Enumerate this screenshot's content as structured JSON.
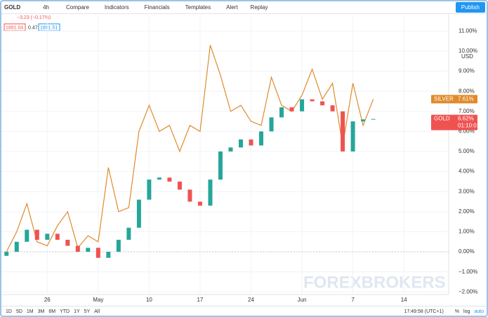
{
  "toolbar": {
    "symbol": "GOLD",
    "interval": "4h",
    "items": [
      "Compare",
      "Indicators",
      "Financials",
      "Templates",
      "Alert",
      "Replay"
    ],
    "publish": "Publish"
  },
  "legend": {
    "change": "−3.23 (−0.17%)",
    "bid": "1891.04",
    "spread": "0.47",
    "ask": "1891.51"
  },
  "chart_data": {
    "type": "line",
    "x": [
      0,
      1,
      2,
      3,
      4,
      5,
      6,
      7,
      8,
      9,
      10,
      11,
      12,
      13,
      14,
      15,
      16,
      17,
      18,
      19,
      20,
      21,
      22,
      23,
      24,
      25,
      26,
      27,
      28,
      29,
      30,
      31,
      32,
      33,
      34,
      35,
      36
    ],
    "series": [
      {
        "name": "SILVER",
        "color": "#e08a2b",
        "last_label": "7.61%",
        "values": [
          0.0,
          1.0,
          2.4,
          0.5,
          0.3,
          1.3,
          2.0,
          0.2,
          0.8,
          0.5,
          4.2,
          2.0,
          2.2,
          6.0,
          7.3,
          6.0,
          6.3,
          5.0,
          6.3,
          6.0,
          10.3,
          8.8,
          7.0,
          7.3,
          6.5,
          6.3,
          8.7,
          7.3,
          7.0,
          7.8,
          9.1,
          7.6,
          8.4,
          5.3,
          8.4,
          6.3,
          7.61
        ]
      },
      {
        "name": "GOLD",
        "color": "#26a69a",
        "down_color": "#ef5350",
        "last_label": "6.62%",
        "countdown": "01:10:01",
        "open": [
          -0.2,
          0.0,
          0.5,
          1.1,
          0.6,
          0.9,
          0.6,
          0.3,
          0.0,
          0.2,
          -0.3,
          0.0,
          0.6,
          1.2,
          2.6,
          3.6,
          3.7,
          3.5,
          3.1,
          2.5,
          2.3,
          3.6,
          5.0,
          5.2,
          5.6,
          5.3,
          6.0,
          6.7,
          7.2,
          7.0,
          7.6,
          7.5,
          7.3,
          7.0,
          5.0,
          6.5,
          6.6
        ],
        "values": [
          0.0,
          0.5,
          1.1,
          0.6,
          0.9,
          0.6,
          0.3,
          0.0,
          0.2,
          -0.3,
          0.0,
          0.6,
          1.2,
          2.6,
          3.6,
          3.7,
          3.5,
          3.1,
          2.5,
          2.3,
          3.6,
          5.0,
          5.2,
          5.6,
          5.3,
          6.0,
          6.7,
          7.2,
          7.0,
          7.6,
          7.5,
          7.3,
          7.0,
          5.0,
          6.5,
          6.6,
          6.62
        ]
      }
    ],
    "xlim": [
      -0.5,
      43.4
    ],
    "xticks": [
      {
        "value": 4,
        "label": "26"
      },
      {
        "value": 9,
        "label": "May"
      },
      {
        "value": 14,
        "label": "10"
      },
      {
        "value": 19,
        "label": "17"
      },
      {
        "value": 24,
        "label": "24"
      },
      {
        "value": 29,
        "label": "Jun"
      },
      {
        "value": 34,
        "label": "7"
      },
      {
        "value": 39,
        "label": "14"
      }
    ],
    "ylim": [
      -2.13,
      11.78
    ],
    "yticks": [
      {
        "value": -2,
        "label": "−2.00%"
      },
      {
        "value": -1,
        "label": "−1.00%"
      },
      {
        "value": 0,
        "label": "0.00%"
      },
      {
        "value": 1,
        "label": "1.00%"
      },
      {
        "value": 2,
        "label": "2.00%"
      },
      {
        "value": 3,
        "label": "3.00%"
      },
      {
        "value": 4,
        "label": "4.00%"
      },
      {
        "value": 5,
        "label": "5.00%"
      },
      {
        "value": 6,
        "label": "6.00%"
      },
      {
        "value": 7,
        "label": "7.00%"
      },
      {
        "value": 8,
        "label": "8.00%"
      },
      {
        "value": 9,
        "label": "9.00%"
      },
      {
        "value": 10,
        "label": "10.00%"
      },
      {
        "value": 11,
        "label": "11.00%"
      }
    ],
    "y_unit": "USD",
    "grid": true
  },
  "watermark": "FOREXBROKERS",
  "bottom_bar": {
    "ranges": [
      "1D",
      "5D",
      "1M",
      "3M",
      "6M",
      "YTD",
      "1Y",
      "5Y",
      "All"
    ],
    "time": "17:49:58 (UTC+1)",
    "options": [
      "%",
      "log",
      "auto"
    ]
  }
}
